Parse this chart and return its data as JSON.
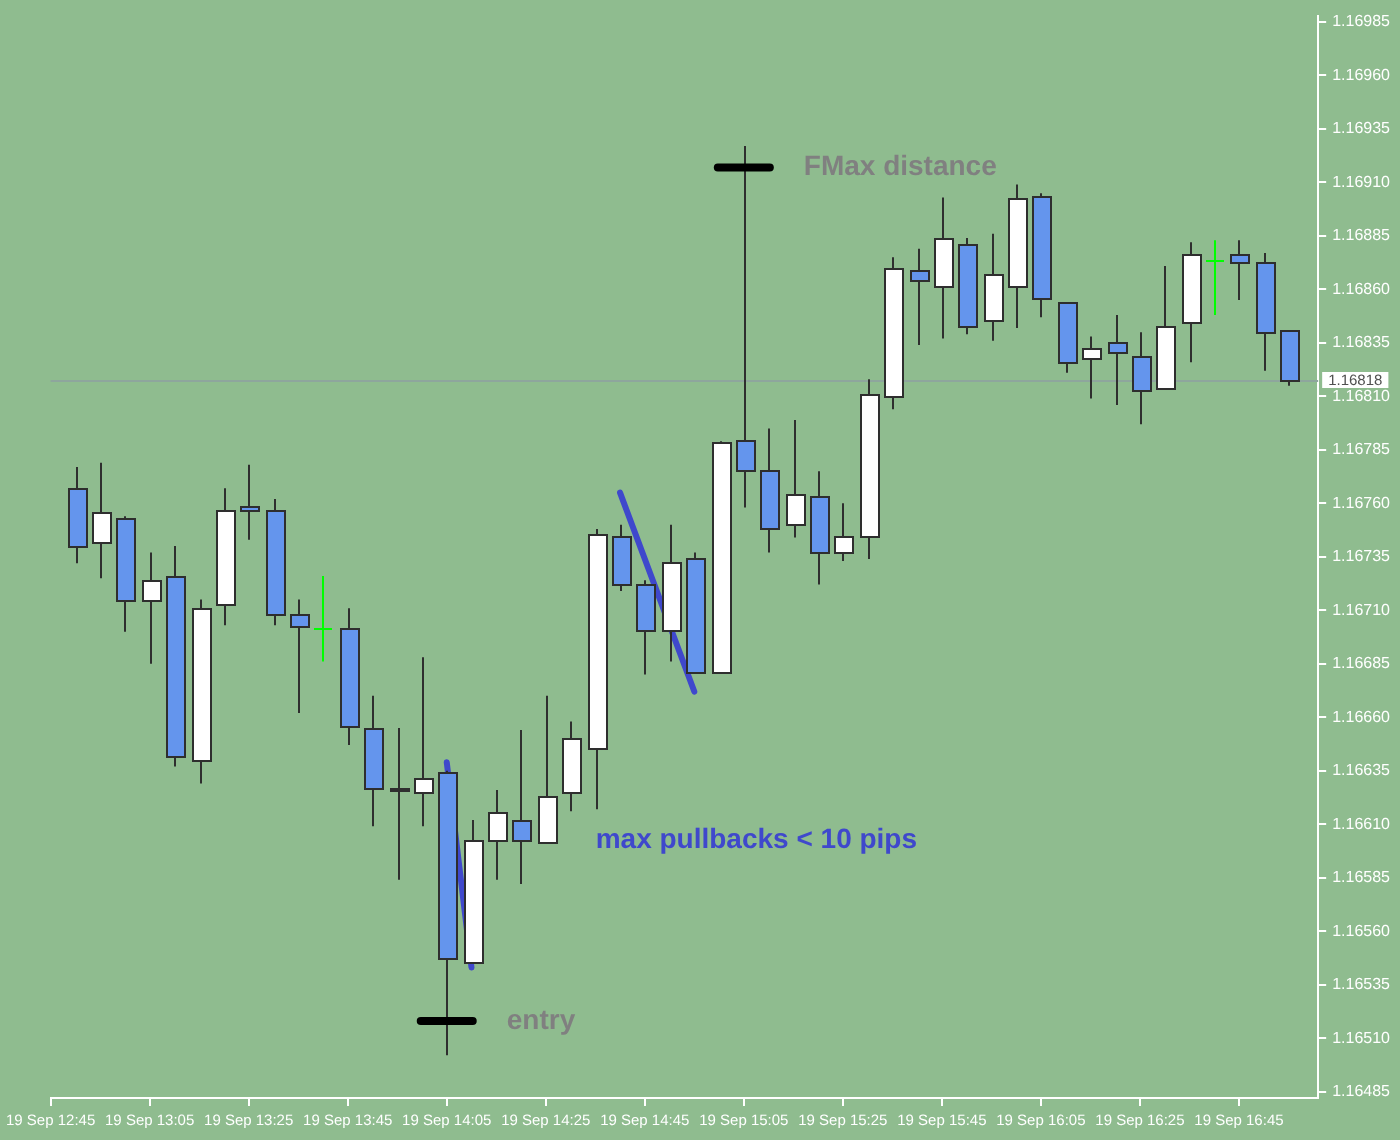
{
  "chart_data": {
    "type": "candlestick",
    "x": [
      "--09-19T12:50",
      "--09-19T12:55",
      "--09-19T13:00",
      "--09-19T13:05",
      "--09-19T13:10",
      "--09-19T13:15",
      "--09-19T13:20",
      "--09-19T13:25",
      "--09-19T13:30",
      "--09-19T13:35",
      "--09-19T13:40",
      "--09-19T13:45",
      "--09-19T13:50",
      "--09-19T13:55",
      "--09-19T14:00",
      "--09-19T14:05",
      "--09-19T14:10",
      "--09-19T14:15",
      "--09-19T14:20",
      "--09-19T14:25",
      "--09-19T14:30",
      "--09-19T14:35",
      "--09-19T14:40",
      "--09-19T14:45",
      "--09-19T14:50",
      "--09-19T14:55",
      "--09-19T15:00",
      "--09-19T15:05",
      "--09-19T15:10",
      "--09-19T15:15",
      "--09-19T15:20",
      "--09-19T15:25",
      "--09-19T15:30",
      "--09-19T15:35",
      "--09-19T15:40",
      "--09-19T15:45",
      "--09-19T15:50",
      "--09-19T15:55",
      "--09-19T16:00",
      "--09-19T16:05",
      "--09-19T16:10",
      "--09-19T16:15",
      "--09-19T16:20",
      "--09-19T16:25",
      "--09-19T16:30",
      "--09-19T16:35",
      "--09-19T16:40",
      "--09-19T16:45",
      "--09-19T16:50",
      "--09-19T16:55"
    ],
    "ohlc": [
      [
        1.16767,
        1.16777,
        1.16732,
        1.1674
      ],
      [
        1.16742,
        1.16779,
        1.16725,
        1.16756
      ],
      [
        1.16753,
        1.16754,
        1.167,
        1.16715
      ],
      [
        1.16715,
        1.16737,
        1.16685,
        1.16724
      ],
      [
        1.16726,
        1.1674,
        1.16637,
        1.16642
      ],
      [
        1.1664,
        1.16715,
        1.16629,
        1.16711
      ],
      [
        1.16713,
        1.16767,
        1.16703,
        1.16757
      ],
      [
        1.16759,
        1.16778,
        1.16743,
        1.16757
      ],
      [
        1.16757,
        1.16762,
        1.16703,
        1.16708
      ],
      [
        1.16708,
        1.16715,
        1.16662,
        1.16703
      ],
      [
        1.16702,
        1.16726,
        1.16686,
        1.16702
      ],
      [
        1.16702,
        1.16711,
        1.16647,
        1.16656
      ],
      [
        1.16655,
        1.1667,
        1.16609,
        1.16627
      ],
      [
        1.16627,
        1.16655,
        1.16584,
        1.16626
      ],
      [
        1.16625,
        1.16688,
        1.16609,
        1.16632
      ],
      [
        1.16634,
        1.16635,
        1.16502,
        1.16547
      ],
      [
        1.16546,
        1.16612,
        1.16546,
        1.16603
      ],
      [
        1.16603,
        1.16626,
        1.16584,
        1.16616
      ],
      [
        1.16612,
        1.16654,
        1.16582,
        1.16603
      ],
      [
        1.16602,
        1.1667,
        1.16601,
        1.16623
      ],
      [
        1.16625,
        1.16658,
        1.16616,
        1.1665
      ],
      [
        1.16646,
        1.16748,
        1.16617,
        1.16746
      ],
      [
        1.16745,
        1.1675,
        1.16719,
        1.16722
      ],
      [
        1.16722,
        1.16724,
        1.1668,
        1.16701
      ],
      [
        1.16701,
        1.1675,
        1.16686,
        1.16733
      ],
      [
        1.16734,
        1.16737,
        1.16681,
        1.16681
      ],
      [
        1.16681,
        1.16789,
        1.16681,
        1.16789
      ],
      [
        1.1679,
        1.16927,
        1.16758,
        1.16776
      ],
      [
        1.16776,
        1.16795,
        1.16737,
        1.16748
      ],
      [
        1.1675,
        1.16799,
        1.16744,
        1.16764
      ],
      [
        1.16763,
        1.16775,
        1.16722,
        1.16737
      ],
      [
        1.16737,
        1.1676,
        1.16733,
        1.16745
      ],
      [
        1.16745,
        1.16818,
        1.16734,
        1.16811
      ],
      [
        1.1681,
        1.16875,
        1.16804,
        1.1687
      ],
      [
        1.16869,
        1.16879,
        1.16834,
        1.16864
      ],
      [
        1.16862,
        1.16903,
        1.16837,
        1.16884
      ],
      [
        1.16881,
        1.16884,
        1.16839,
        1.16843
      ],
      [
        1.16846,
        1.16886,
        1.16836,
        1.16867
      ],
      [
        1.16862,
        1.16909,
        1.16842,
        1.16903
      ],
      [
        1.16904,
        1.16905,
        1.16847,
        1.16856
      ],
      [
        1.16854,
        1.16854,
        1.16821,
        1.16826
      ],
      [
        1.16828,
        1.16838,
        1.16809,
        1.16833
      ],
      [
        1.16835,
        1.16848,
        1.16806,
        1.16831
      ],
      [
        1.16829,
        1.1684,
        1.16797,
        1.16813
      ],
      [
        1.16814,
        1.16871,
        1.16813,
        1.16843
      ],
      [
        1.16845,
        1.16882,
        1.16826,
        1.16877
      ],
      [
        1.16874,
        1.16883,
        1.16848,
        1.16874
      ],
      [
        1.16877,
        1.16883,
        1.16855,
        1.16873
      ],
      [
        1.16873,
        1.16877,
        1.16822,
        1.1684
      ],
      [
        1.16841,
        1.16841,
        1.16815,
        1.16818
      ]
    ],
    "colors": [
      "#6495ed",
      "#ffffff",
      "#6495ed",
      "#ffffff",
      "#6495ed",
      "#ffffff",
      "#ffffff",
      "#6495ed",
      "#6495ed",
      "#6495ed",
      "#00ff00",
      "#6495ed",
      "#6495ed",
      "#6495ed",
      "#ffffff",
      "#6495ed",
      "#ffffff",
      "#ffffff",
      "#6495ed",
      "#ffffff",
      "#ffffff",
      "#ffffff",
      "#6495ed",
      "#6495ed",
      "#ffffff",
      "#6495ed",
      "#ffffff",
      "#6495ed",
      "#6495ed",
      "#ffffff",
      "#6495ed",
      "#ffffff",
      "#ffffff",
      "#ffffff",
      "#6495ed",
      "#ffffff",
      "#6495ed",
      "#ffffff",
      "#ffffff",
      "#6495ed",
      "#6495ed",
      "#ffffff",
      "#6495ed",
      "#6495ed",
      "#ffffff",
      "#ffffff",
      "#00ff00",
      "#6495ed",
      "#6495ed",
      "#6495ed"
    ],
    "xlim": [
      "--09-19T12:45",
      "--09-19T17:01"
    ],
    "xticks": [
      {
        "value": "--09-19T12:45",
        "label": "19 Sep 12:45"
      },
      {
        "value": "--09-19T13:05",
        "label": "19 Sep 13:05"
      },
      {
        "value": "--09-19T13:25",
        "label": "19 Sep 13:25"
      },
      {
        "value": "--09-19T13:45",
        "label": "19 Sep 13:45"
      },
      {
        "value": "--09-19T14:05",
        "label": "19 Sep 14:05"
      },
      {
        "value": "--09-19T14:25",
        "label": "19 Sep 14:25"
      },
      {
        "value": "--09-19T14:45",
        "label": "19 Sep 14:45"
      },
      {
        "value": "--09-19T15:05",
        "label": "19 Sep 15:05"
      },
      {
        "value": "--09-19T15:25",
        "label": "19 Sep 15:25"
      },
      {
        "value": "--09-19T15:45",
        "label": "19 Sep 15:45"
      },
      {
        "value": "--09-19T16:05",
        "label": "19 Sep 16:05"
      },
      {
        "value": "--09-19T16:25",
        "label": "19 Sep 16:25"
      },
      {
        "value": "--09-19T16:45",
        "label": "19 Sep 16:45"
      }
    ],
    "ylim": [
      1.16482,
      1.16988
    ],
    "yticks": [
      1.16485,
      {
        "value": 1.1651,
        "label": "1.16510"
      },
      1.16535,
      {
        "value": 1.1656,
        "label": "1.16560"
      },
      1.16585,
      {
        "value": 1.1661,
        "label": "1.16610"
      },
      1.16635,
      {
        "value": 1.1666,
        "label": "1.16660"
      },
      1.16685,
      {
        "value": 1.1671,
        "label": "1.16710"
      },
      1.16735,
      {
        "value": 1.1676,
        "label": "1.16760"
      },
      1.16785,
      {
        "value": 1.1681,
        "label": "1.16810"
      },
      1.16835,
      {
        "value": 1.1686,
        "label": "1.16860"
      },
      1.16885,
      {
        "value": 1.1691,
        "label": "1.16910"
      },
      1.16935,
      {
        "value": 1.1696,
        "label": "1.16960"
      },
      1.16985
    ],
    "series": [
      {
        "type": "line",
        "x": [
          "--09-19T14:05",
          "--09-19T14:10"
        ],
        "values": [
          1.16639,
          1.16543
        ],
        "color": "#3f48cc"
      },
      {
        "type": "line",
        "x": [
          "--09-19T14:40",
          "--09-19T14:55"
        ],
        "values": [
          1.16765,
          1.16672
        ],
        "color": "#3f48cc"
      }
    ],
    "ref_lines": [
      {
        "axis": "y",
        "value": 1.16818,
        "label": "1.16818",
        "color": "#8ea69d"
      }
    ],
    "annotations": [
      {
        "text": "FMax distance",
        "x": "--09-19T15:05",
        "y": 1.16917
      },
      {
        "text": "entry",
        "x": "--09-19T14:05",
        "y": 1.16518
      },
      "max pullbacks < 10 pips"
    ],
    "grid": false,
    "legend": false
  }
}
